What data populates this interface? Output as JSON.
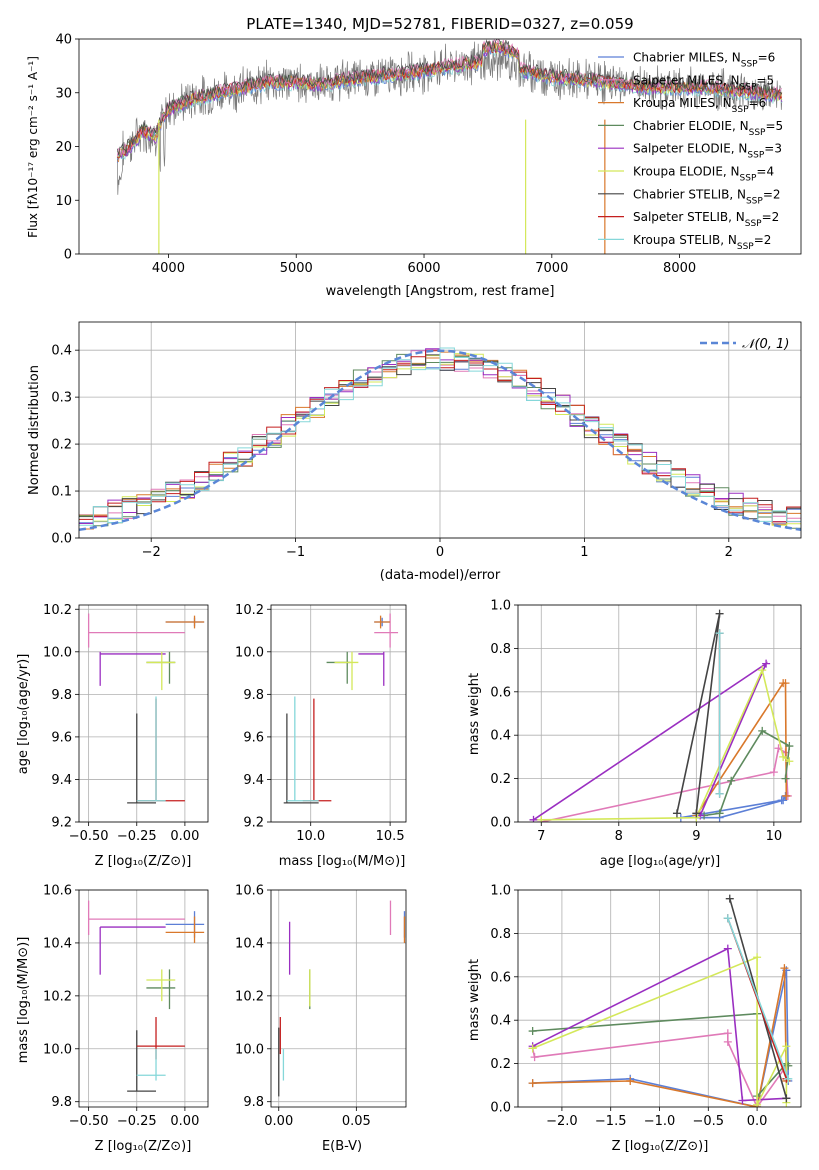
{
  "colors": {
    "chab_miles": "#5c7fd6",
    "salp_miles": "#e07ab8",
    "krou_miles": "#d9782b",
    "chab_elodie": "#5e8a5e",
    "salp_elodie": "#9a2fc1",
    "krou_elodie": "#d4e85a",
    "chab_stelib": "#444444",
    "salp_stelib": "#c41f1f",
    "krou_stelib": "#85d7d9",
    "normal": "#5a86d6"
  },
  "chart_data": [
    {
      "id": "spectrum",
      "type": "line",
      "title": "PLATE=1340, MJD=52781, FIBERID=0327, z=0.059",
      "xlabel": "wavelength [Angstrom, rest frame]",
      "ylabel": "Flux [fλ10⁻¹⁷ erg cm⁻² s⁻¹ A⁻¹]",
      "xlim": [
        3300,
        8950
      ],
      "ylim": [
        0,
        40
      ],
      "xticks": [
        "4000",
        "5000",
        "6000",
        "7000",
        "8000"
      ],
      "yticks": [
        "0",
        "10",
        "20",
        "30",
        "40"
      ],
      "grid": false,
      "legend_position": "top-right",
      "continuum": [
        [
          3600,
          18
        ],
        [
          3700,
          20
        ],
        [
          3800,
          23
        ],
        [
          3900,
          22
        ],
        [
          3950,
          25
        ],
        [
          4000,
          27
        ],
        [
          4100,
          28
        ],
        [
          4200,
          29
        ],
        [
          4400,
          30
        ],
        [
          4600,
          31
        ],
        [
          4800,
          32
        ],
        [
          5000,
          32
        ],
        [
          5200,
          31.5
        ],
        [
          5400,
          32.5
        ],
        [
          5600,
          33
        ],
        [
          5800,
          33.5
        ],
        [
          6000,
          34
        ],
        [
          6200,
          35
        ],
        [
          6400,
          35.5
        ],
        [
          6600,
          36
        ],
        [
          6700,
          35
        ],
        [
          6800,
          34
        ],
        [
          7000,
          33
        ],
        [
          7200,
          32.5
        ],
        [
          7400,
          32
        ],
        [
          7600,
          31.5
        ],
        [
          7800,
          31
        ],
        [
          8000,
          31
        ],
        [
          8200,
          31
        ],
        [
          8400,
          30.5
        ],
        [
          8600,
          30
        ],
        [
          8800,
          29.5
        ]
      ],
      "legend": [
        {
          "label": "Chabrier MILES, N",
          "sub": "SSP",
          "n": "=6",
          "color": "chab_miles"
        },
        {
          "label": "Salpeter MILES, N",
          "sub": "SSP",
          "n": "=5",
          "color": "salp_miles"
        },
        {
          "label": "Kroupa MILES, N",
          "sub": "SSP",
          "n": "=6",
          "color": "krou_miles"
        },
        {
          "label": "Chabrier ELODIE, N",
          "sub": "SSP",
          "n": "=5",
          "color": "chab_elodie"
        },
        {
          "label": "Salpeter ELODIE, N",
          "sub": "SSP",
          "n": "=3",
          "color": "salp_elodie"
        },
        {
          "label": "Kroupa ELODIE, N",
          "sub": "SSP",
          "n": "=4",
          "color": "krou_elodie"
        },
        {
          "label": "Chabrier STELIB, N",
          "sub": "SSP",
          "n": "=2",
          "color": "chab_stelib"
        },
        {
          "label": "Salpeter STELIB, N",
          "sub": "SSP",
          "n": "=2",
          "color": "salp_stelib"
        },
        {
          "label": "Kroupa STELIB, N",
          "sub": "SSP",
          "n": "=2",
          "color": "krou_stelib"
        }
      ]
    },
    {
      "id": "residuals",
      "type": "line",
      "xlabel": "(data-model)/error",
      "ylabel": "Normed distribution",
      "xlim": [
        -2.5,
        2.5
      ],
      "ylim": [
        0,
        0.46
      ],
      "xticks": [
        "−2",
        "−1",
        "0",
        "1",
        "2"
      ],
      "yticks": [
        "0.0",
        "0.1",
        "0.2",
        "0.3",
        "0.4"
      ],
      "grid": true,
      "legend_position": "top-right",
      "legend": "𝒩(0, 1)",
      "bin_width": 0.1,
      "bin_start": -2.5
    },
    {
      "id": "age_vs_Z",
      "type": "scatter",
      "xlabel": "Z [log₁₀(Z/Z⊙)]",
      "ylabel": "age  [log₁₀(age/yr)]",
      "xlim": [
        -0.55,
        0.12
      ],
      "ylim": [
        9.2,
        10.22
      ],
      "xticks": [
        "−0.50",
        "−0.25",
        "0.00"
      ],
      "yticks": [
        "9.2",
        "9.4",
        "9.6",
        "9.8",
        "10.0",
        "10.2"
      ],
      "grid": true,
      "points": [
        {
          "c": "chab_miles",
          "x": 0.05,
          "y": 10.14,
          "xl": -0.1,
          "xh": 0.1,
          "yl": 10.12,
          "yh": 10.16
        },
        {
          "c": "salp_miles",
          "x": -0.5,
          "y": 10.09,
          "xl": -0.5,
          "xh": 0.0,
          "yl": 10.02,
          "yh": 10.18
        },
        {
          "c": "krou_miles",
          "x": 0.05,
          "y": 10.14,
          "xl": -0.1,
          "xh": 0.1,
          "yl": 10.11,
          "yh": 10.17
        },
        {
          "c": "chab_elodie",
          "x": -0.08,
          "y": 9.95,
          "xl": -0.2,
          "xh": -0.05,
          "yl": 9.85,
          "yh": 10.0
        },
        {
          "c": "salp_elodie",
          "x": -0.44,
          "y": 9.99,
          "xl": -0.44,
          "xh": -0.1,
          "yl": 9.84,
          "yh": 10.0
        },
        {
          "c": "krou_elodie",
          "x": -0.12,
          "y": 9.95,
          "xl": -0.2,
          "xh": -0.05,
          "yl": 9.82,
          "yh": 10.0
        },
        {
          "c": "chab_stelib",
          "x": -0.25,
          "y": 9.29,
          "xl": -0.3,
          "xh": -0.15,
          "yl": 9.29,
          "yh": 9.71
        },
        {
          "c": "salp_stelib",
          "x": -0.15,
          "y": 9.3,
          "xl": -0.25,
          "xh": 0.0,
          "yl": 9.3,
          "yh": 9.78
        },
        {
          "c": "krou_stelib",
          "x": -0.15,
          "y": 9.3,
          "xl": -0.25,
          "xh": -0.1,
          "yl": 9.3,
          "yh": 9.79
        }
      ]
    },
    {
      "id": "age_vs_mass",
      "type": "scatter",
      "xlabel": "mass [log₁₀(M/M⊙)]",
      "xlim": [
        9.75,
        10.6
      ],
      "ylim": [
        9.2,
        10.22
      ],
      "xticks": [
        "10.0",
        "10.5"
      ],
      "yticks": [
        "9.2",
        "9.4",
        "9.6",
        "9.8",
        "10.0",
        "10.2"
      ],
      "grid": true,
      "points": [
        {
          "c": "chab_miles",
          "x": 10.45,
          "y": 10.14,
          "xl": 10.4,
          "xh": 10.5,
          "yl": 10.12,
          "yh": 10.16
        },
        {
          "c": "salp_miles",
          "x": 10.5,
          "y": 10.09,
          "xl": 10.4,
          "xh": 10.55,
          "yl": 10.02,
          "yh": 10.18
        },
        {
          "c": "krou_miles",
          "x": 10.44,
          "y": 10.14,
          "xl": 10.4,
          "xh": 10.5,
          "yl": 10.11,
          "yh": 10.17
        },
        {
          "c": "chab_elodie",
          "x": 10.23,
          "y": 9.95,
          "xl": 10.1,
          "xh": 10.25,
          "yl": 9.85,
          "yh": 10.0
        },
        {
          "c": "salp_elodie",
          "x": 10.46,
          "y": 9.99,
          "xl": 10.3,
          "xh": 10.46,
          "yl": 9.84,
          "yh": 10.0
        },
        {
          "c": "krou_elodie",
          "x": 10.26,
          "y": 9.95,
          "xl": 10.15,
          "xh": 10.3,
          "yl": 9.82,
          "yh": 10.0
        },
        {
          "c": "chab_stelib",
          "x": 9.85,
          "y": 9.29,
          "xl": 9.83,
          "xh": 10.05,
          "yl": 9.29,
          "yh": 9.71
        },
        {
          "c": "salp_stelib",
          "x": 10.02,
          "y": 9.3,
          "xl": 9.95,
          "xh": 10.13,
          "yl": 9.3,
          "yh": 9.78
        },
        {
          "c": "krou_stelib",
          "x": 9.9,
          "y": 9.3,
          "xl": 9.85,
          "xh": 10.05,
          "yl": 9.3,
          "yh": 9.79
        }
      ]
    },
    {
      "id": "weight_vs_age",
      "type": "line",
      "xlabel": "age  [log₁₀(age/yr)]",
      "ylabel": "mass weight",
      "xlim": [
        6.7,
        10.35
      ],
      "ylim": [
        0,
        1.0
      ],
      "xticks": [
        "7",
        "8",
        "9",
        "10"
      ],
      "yticks": [
        "0.0",
        "0.2",
        "0.4",
        "0.6",
        "0.8",
        "1.0"
      ],
      "grid": true,
      "series": [
        {
          "c": "chab_miles",
          "pts": [
            [
              10.1,
              0.1
            ],
            [
              8.8,
              0.02
            ],
            [
              9.3,
              0.02
            ],
            [
              10.12,
              0.1
            ],
            [
              10.15,
              0.12
            ]
          ]
        },
        {
          "c": "salp_miles",
          "pts": [
            [
              7.0,
              0.0
            ],
            [
              10.0,
              0.23
            ],
            [
              10.06,
              0.34
            ],
            [
              10.15,
              0.32
            ],
            [
              10.18,
              0.12
            ]
          ]
        },
        {
          "c": "krou_miles",
          "pts": [
            [
              9.0,
              0.03
            ],
            [
              10.12,
              0.64
            ],
            [
              10.15,
              0.64
            ],
            [
              10.16,
              0.12
            ]
          ]
        },
        {
          "c": "chab_elodie",
          "pts": [
            [
              9.1,
              0.03
            ],
            [
              9.3,
              0.04
            ],
            [
              9.45,
              0.19
            ],
            [
              9.85,
              0.42
            ],
            [
              10.2,
              0.35
            ],
            [
              10.15,
              0.2
            ]
          ]
        },
        {
          "c": "salp_elodie",
          "pts": [
            [
              6.9,
              0.01
            ],
            [
              9.9,
              0.73
            ],
            [
              9.05,
              0.03
            ]
          ]
        },
        {
          "c": "krou_elodie",
          "pts": [
            [
              7.0,
              0.01
            ],
            [
              9.0,
              0.02
            ],
            [
              9.85,
              0.7
            ],
            [
              10.12,
              0.3
            ],
            [
              10.2,
              0.28
            ]
          ]
        },
        {
          "c": "chab_stelib",
          "pts": [
            [
              8.75,
              0.04
            ],
            [
              9.3,
              0.96
            ],
            [
              9.0,
              0.04
            ]
          ]
        },
        {
          "c": "salp_stelib",
          "pts": [
            [
              9.3,
              0.87
            ],
            [
              9.3,
              0.13
            ]
          ]
        },
        {
          "c": "krou_stelib",
          "pts": [
            [
              9.3,
              0.87
            ],
            [
              9.3,
              0.13
            ]
          ]
        }
      ]
    },
    {
      "id": "mass_vs_Z",
      "type": "scatter",
      "xlabel": "Z [log₁₀(Z/Z⊙)]",
      "ylabel": "mass [log₁₀(M/M⊙)]",
      "xlim": [
        -0.55,
        0.12
      ],
      "ylim": [
        9.78,
        10.6
      ],
      "xticks": [
        "−0.50",
        "−0.25",
        "0.00"
      ],
      "yticks": [
        "9.8",
        "10.0",
        "10.2",
        "10.4",
        "10.6"
      ],
      "grid": true,
      "points": [
        {
          "c": "chab_miles",
          "x": 0.05,
          "y": 10.47,
          "xl": -0.1,
          "xh": 0.1,
          "yl": 10.42,
          "yh": 10.52
        },
        {
          "c": "salp_miles",
          "x": -0.5,
          "y": 10.49,
          "xl": -0.5,
          "xh": 0.0,
          "yl": 10.43,
          "yh": 10.56
        },
        {
          "c": "krou_miles",
          "x": 0.05,
          "y": 10.44,
          "xl": -0.1,
          "xh": 0.1,
          "yl": 10.4,
          "yh": 10.5
        },
        {
          "c": "chab_elodie",
          "x": -0.08,
          "y": 10.23,
          "xl": -0.2,
          "xh": -0.05,
          "yl": 10.15,
          "yh": 10.3
        },
        {
          "c": "salp_elodie",
          "x": -0.44,
          "y": 10.46,
          "xl": -0.44,
          "xh": -0.1,
          "yl": 10.28,
          "yh": 10.46
        },
        {
          "c": "krou_elodie",
          "x": -0.12,
          "y": 10.26,
          "xl": -0.2,
          "xh": -0.05,
          "yl": 10.18,
          "yh": 10.3
        },
        {
          "c": "chab_stelib",
          "x": -0.25,
          "y": 9.84,
          "xl": -0.3,
          "xh": -0.15,
          "yl": 9.84,
          "yh": 10.07
        },
        {
          "c": "salp_stelib",
          "x": -0.15,
          "y": 10.01,
          "xl": -0.25,
          "xh": 0.0,
          "yl": 9.96,
          "yh": 10.12
        },
        {
          "c": "krou_stelib",
          "x": -0.15,
          "y": 9.9,
          "xl": -0.25,
          "xh": -0.1,
          "yl": 9.88,
          "yh": 10.0
        }
      ]
    },
    {
      "id": "mass_vs_ebv",
      "type": "scatter",
      "xlabel": "E(B-V)",
      "xlim": [
        -0.005,
        0.082
      ],
      "ylim": [
        9.78,
        10.6
      ],
      "xticks": [
        "0.00",
        "0.05"
      ],
      "yticks": [
        "9.8",
        "10.0",
        "10.2",
        "10.4",
        "10.6"
      ],
      "grid": true,
      "points": [
        {
          "c": "chab_miles",
          "x": 0.081,
          "y": 10.47,
          "yl": 10.42,
          "yh": 10.52
        },
        {
          "c": "salp_miles",
          "x": 0.072,
          "y": 10.49,
          "yl": 10.43,
          "yh": 10.56
        },
        {
          "c": "krou_miles",
          "x": 0.081,
          "y": 10.44,
          "yl": 10.4,
          "yh": 10.5
        },
        {
          "c": "chab_elodie",
          "x": 0.02,
          "y": 10.23,
          "yl": 10.15,
          "yh": 10.3
        },
        {
          "c": "salp_elodie",
          "x": 0.007,
          "y": 10.38,
          "yl": 10.28,
          "yh": 10.48
        },
        {
          "c": "krou_elodie",
          "x": 0.02,
          "y": 10.23,
          "yl": 10.16,
          "yh": 10.3
        },
        {
          "c": "chab_stelib",
          "x": 0.0,
          "y": 9.9,
          "yl": 9.82,
          "yh": 10.08
        },
        {
          "c": "salp_stelib",
          "x": 0.001,
          "y": 10.05,
          "yl": 9.98,
          "yh": 10.12
        },
        {
          "c": "krou_stelib",
          "x": 0.003,
          "y": 9.94,
          "yl": 9.88,
          "yh": 10.0
        }
      ]
    },
    {
      "id": "weight_vs_Z",
      "type": "line",
      "xlabel": "Z [log₁₀(Z/Z⊙)]",
      "ylabel": "mass weight",
      "xlim": [
        -2.45,
        0.45
      ],
      "ylim": [
        0,
        1.0
      ],
      "xticks": [
        "−2.0",
        "−1.5",
        "−1.0",
        "−0.5",
        "0.0"
      ],
      "yticks": [
        "0.0",
        "0.2",
        "0.4",
        "0.6",
        "0.8",
        "1.0"
      ],
      "grid": true,
      "series": [
        {
          "c": "chab_miles",
          "pts": [
            [
              -2.3,
              0.11
            ],
            [
              -1.3,
              0.13
            ],
            [
              0.0,
              0.0
            ],
            [
              0.3,
              0.63
            ],
            [
              0.32,
              0.12
            ]
          ]
        },
        {
          "c": "salp_miles",
          "pts": [
            [
              -2.3,
              0.27
            ],
            [
              -2.28,
              0.23
            ],
            [
              -0.3,
              0.34
            ],
            [
              -0.3,
              0.3
            ],
            [
              0.0,
              0.0
            ],
            [
              0.3,
              0.19
            ]
          ]
        },
        {
          "c": "krou_miles",
          "pts": [
            [
              -2.3,
              0.11
            ],
            [
              -1.3,
              0.12
            ],
            [
              0.0,
              0.0
            ],
            [
              0.28,
              0.64
            ],
            [
              0.3,
              0.12
            ]
          ]
        },
        {
          "c": "chab_elodie",
          "pts": [
            [
              -2.3,
              0.35
            ],
            [
              0.0,
              0.43
            ],
            [
              0.0,
              0.05
            ],
            [
              0.3,
              0.2
            ],
            [
              0.32,
              0.19
            ]
          ]
        },
        {
          "c": "salp_elodie",
          "pts": [
            [
              -2.3,
              0.28
            ],
            [
              -0.3,
              0.73
            ],
            [
              -0.15,
              0.03
            ],
            [
              0.3,
              0.04
            ]
          ]
        },
        {
          "c": "krou_elodie",
          "pts": [
            [
              -2.3,
              0.27
            ],
            [
              0.0,
              0.69
            ],
            [
              0.0,
              0.01
            ],
            [
              0.3,
              0.28
            ],
            [
              0.3,
              0.02
            ]
          ]
        },
        {
          "c": "chab_stelib",
          "pts": [
            [
              -0.28,
              0.96
            ],
            [
              0.3,
              0.04
            ]
          ]
        },
        {
          "c": "salp_stelib",
          "pts": [
            [
              -0.3,
              0.87
            ],
            [
              0.3,
              0.13
            ]
          ]
        },
        {
          "c": "krou_stelib",
          "pts": [
            [
              -0.3,
              0.87
            ],
            [
              0.32,
              0.13
            ]
          ]
        }
      ]
    }
  ]
}
